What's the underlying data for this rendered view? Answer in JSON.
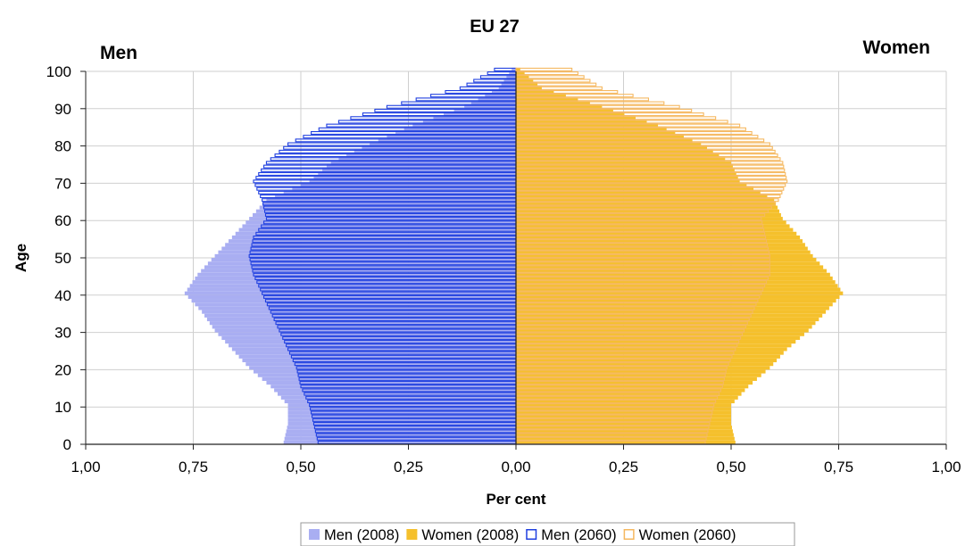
{
  "chart_data": {
    "type": "bar",
    "orientation": "horizontal",
    "title": "EU 27",
    "left_label": "Men",
    "right_label": "Women",
    "xlabel": "Per cent",
    "ylabel": "Age",
    "x_ticks": [
      "1,00",
      "0,75",
      "0,50",
      "0,25",
      "0,00",
      "0,25",
      "0,50",
      "0,75",
      "1,00"
    ],
    "y_ticks": [
      "0",
      "10",
      "20",
      "30",
      "40",
      "50",
      "60",
      "70",
      "80",
      "90",
      "100"
    ],
    "xlim": [
      -1,
      1
    ],
    "ylim": [
      0,
      100
    ],
    "grid": true,
    "legend_position": "bottom",
    "legend": [
      {
        "name": "Men (2008)",
        "style": "filled",
        "color": "#a9aef2"
      },
      {
        "name": "Women (2008)",
        "style": "filled",
        "color": "#f5c02c"
      },
      {
        "name": "Men (2060)",
        "style": "outline",
        "color": "#2040e0"
      },
      {
        "name": "Women (2060)",
        "style": "outline",
        "color": "#f5b860"
      }
    ],
    "age_anchor_points": [
      0,
      5,
      10,
      15,
      20,
      25,
      30,
      35,
      40,
      45,
      50,
      55,
      60,
      65,
      70,
      75,
      80,
      85,
      90,
      95,
      100
    ],
    "series": [
      {
        "name": "Men (2008)",
        "values": [
          0.54,
          0.53,
          0.53,
          0.57,
          0.62,
          0.66,
          0.7,
          0.73,
          0.77,
          0.74,
          0.7,
          0.66,
          0.62,
          0.58,
          0.48,
          0.43,
          0.34,
          0.24,
          0.12,
          0.04,
          0.01
        ]
      },
      {
        "name": "Women (2008)",
        "values": [
          0.51,
          0.5,
          0.5,
          0.54,
          0.59,
          0.63,
          0.68,
          0.72,
          0.76,
          0.73,
          0.69,
          0.66,
          0.62,
          0.6,
          0.52,
          0.5,
          0.43,
          0.33,
          0.2,
          0.06,
          0.01
        ]
      },
      {
        "name": "Men (2060)",
        "values": [
          0.46,
          0.47,
          0.48,
          0.5,
          0.51,
          0.53,
          0.55,
          0.57,
          0.59,
          0.61,
          0.62,
          0.61,
          0.58,
          0.59,
          0.61,
          0.58,
          0.53,
          0.44,
          0.3,
          0.13,
          0.05
        ]
      },
      {
        "name": "Women (2060)",
        "values": [
          0.44,
          0.45,
          0.46,
          0.48,
          0.49,
          0.51,
          0.53,
          0.55,
          0.57,
          0.59,
          0.59,
          0.58,
          0.57,
          0.61,
          0.63,
          0.62,
          0.59,
          0.52,
          0.38,
          0.2,
          0.13
        ]
      }
    ]
  }
}
